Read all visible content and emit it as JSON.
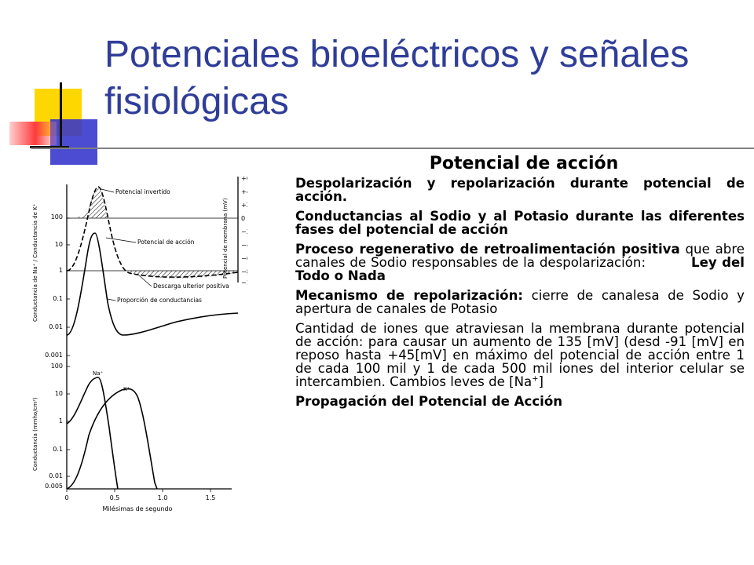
{
  "title": "Potenciales bioeléctricos y señales fisiológicas",
  "heading": "Potencial de acción",
  "paragraphs": {
    "p1": "Despolarización y repolarización durante potencial de acción.",
    "p2": "Conductancias al Sodio y al Potasio durante las diferentes fases del potencial de acción",
    "p3a": "Proceso regenerativo de retroalimentación positiva",
    "p3b": " que abre canales de Sodio responsables de la despolarización:",
    "p3c": "Ley del Todo o Nada",
    "p4a": "Mecanismo de repolarización:",
    "p4b": " cierre de canalesa de Sodio y apertura de canales de Potasio",
    "p5a": "Cantidad de iones que atraviesan la membrana durante potencial de acción: para causar un aumento de 135 [mV] (desd -91 [mV] en reposo hasta +45[mV] en máximo del potencial de acción entre 1 de cada 100 mil y 1 de cada 500 mil iones del interior celular se intercambien. Cambios leves de [Na",
    "p5sup": "+",
    "p5b": "]",
    "p6": "Propagación del Potencial de Acción"
  },
  "figure": {
    "upper": {
      "left_axis_label": "Conductancia de Na⁺ / Conductancia de K⁺",
      "left_ticks": [
        "100",
        "10",
        "1",
        "0.1",
        "0.01",
        "0.001"
      ],
      "right_axis_label": "Potencial de membrana (mV)",
      "right_ticks": [
        "+60",
        "+40",
        "+20",
        "0",
        "−20",
        "−40",
        "−60",
        "−80",
        "−100"
      ],
      "annotations": [
        "Potencial invertido",
        "Potencial de acción",
        "Descarga ulterior positiva",
        "Proporción de conductancias"
      ]
    },
    "lower": {
      "y_axis_label": "Conductancia (mmho/cm²)",
      "y_ticks": [
        "100",
        "10",
        "1",
        "0.1",
        "0.01",
        "0.005"
      ],
      "x_ticks": [
        "0",
        "0.5",
        "1.0",
        "1.5"
      ],
      "x_axis_label": "Milésimas de segundo",
      "series_labels": [
        "Na⁺",
        "K⁺"
      ]
    }
  },
  "colors": {
    "title": "#2f3d99",
    "deco_yellow": "#ffd700",
    "deco_blue": "#3333cc",
    "deco_red": "#ff3b3b",
    "rule": "#808080"
  }
}
